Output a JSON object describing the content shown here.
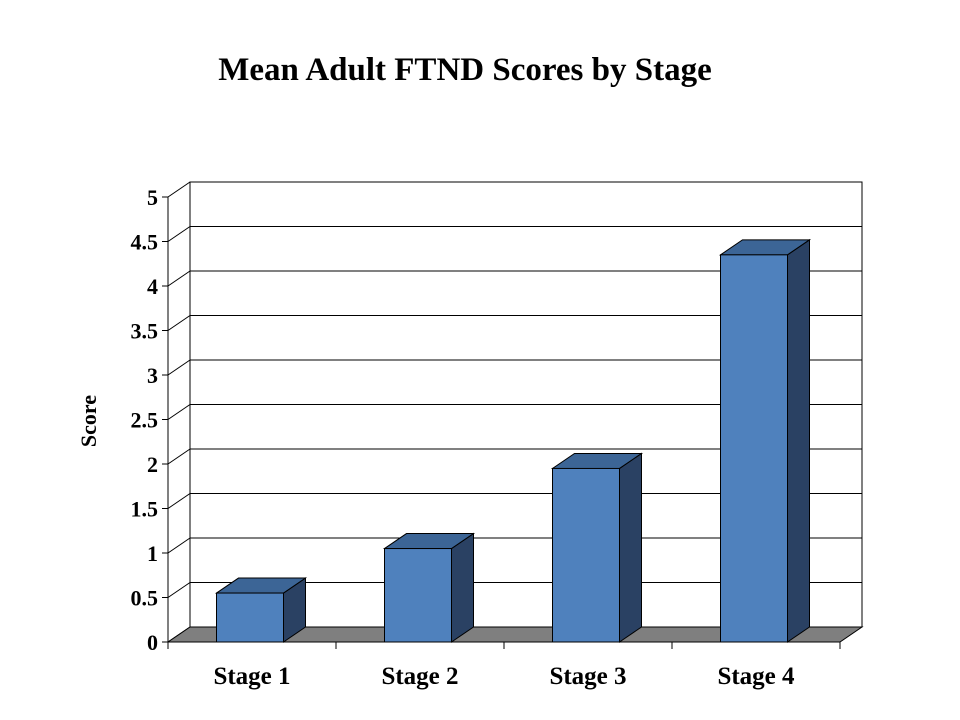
{
  "chart_data": {
    "type": "bar",
    "title": "Mean Adult FTND Scores by Stage",
    "xlabel": "",
    "ylabel": "Score",
    "categories": [
      "Stage 1",
      "Stage 2",
      "Stage 3",
      "Stage 4"
    ],
    "values": [
      0.55,
      1.05,
      1.95,
      4.35
    ],
    "ylim": [
      0,
      5
    ],
    "yticks": [
      "0",
      "0.5",
      "1",
      "1.5",
      "2",
      "2.5",
      "3",
      "3.5",
      "4",
      "4.5",
      "5"
    ],
    "grid": true,
    "legend": "none",
    "colors": {
      "bar_front": "#4f81bd",
      "bar_top": "#3c6596",
      "bar_side": "#2a4163",
      "floor": "#7f7f7f",
      "grid": "#000000"
    }
  }
}
